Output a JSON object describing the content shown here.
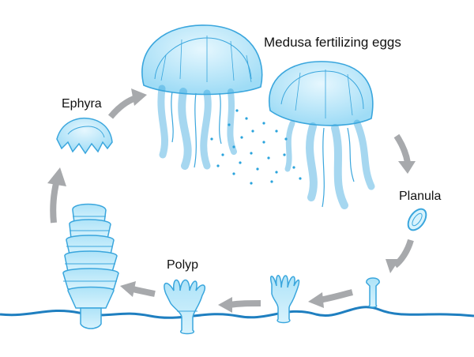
{
  "diagram": {
    "labels": {
      "medusa": "Medusa fertilizing eggs",
      "ephyra": "Ephyra",
      "planula": "Planula",
      "polyp": "Polyp"
    },
    "colors": {
      "jelly_fill": "#bfe9fb",
      "jelly_stroke": "#3aa6dd",
      "jelly_dark": "#1d8ccc",
      "arrow": "#a7a9ac",
      "ground": "#1f7fc0",
      "egg": "#2aa3dc"
    }
  }
}
